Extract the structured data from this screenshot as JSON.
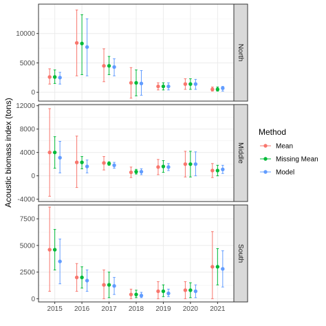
{
  "chart_data": {
    "type": "scatter",
    "ylabel": "Acoustic biomass index (tons)",
    "xlabel": "",
    "grid": true,
    "legend": {
      "title": "Method",
      "placement": "right",
      "entries": [
        {
          "name": "Mean",
          "color": "#F8766D"
        },
        {
          "name": "Missing Mean",
          "color": "#00BA38"
        },
        {
          "name": "Model",
          "color": "#619CFF"
        }
      ]
    },
    "x": [
      "2015",
      "2016",
      "2017",
      "2018",
      "2019",
      "2020",
      "2021"
    ],
    "panels": [
      {
        "strip_label": "North",
        "ylim": [
          -1500,
          15000
        ],
        "yticks": [
          0,
          5000,
          10000
        ],
        "ytick_labels": [
          "0",
          "5000",
          "10000"
        ],
        "series": [
          {
            "name": "Mean",
            "values": [
              2600,
              8400,
              4500,
              1600,
              1000,
              1400,
              500
            ],
            "lower": [
              1400,
              2800,
              1800,
              -1000,
              400,
              500,
              200
            ],
            "upper": [
              4000,
              14000,
              7400,
              4200,
              1600,
              2300,
              900
            ]
          },
          {
            "name": "Missing Mean",
            "values": [
              2600,
              8300,
              4500,
              1600,
              1000,
              1400,
              500
            ],
            "lower": [
              1500,
              3000,
              3000,
              -600,
              400,
              500,
              200
            ],
            "upper": [
              3800,
              13200,
              6100,
              3800,
              1600,
              2300,
              900
            ]
          },
          {
            "name": "Model",
            "values": [
              2500,
              7700,
              4300,
              1500,
              1000,
              1400,
              700
            ],
            "lower": [
              1400,
              2800,
              2800,
              -500,
              400,
              500,
              200
            ],
            "upper": [
              3400,
              12500,
              5700,
              3700,
              1600,
              2200,
              1000
            ]
          }
        ]
      },
      {
        "strip_label": "Middle",
        "ylim": [
          -4400,
          12200
        ],
        "yticks": [
          -4000,
          0,
          4000,
          8000,
          12000
        ],
        "ytick_labels": [
          "-4000",
          "0",
          "4000",
          "8000",
          "12000"
        ],
        "series": [
          {
            "name": "Mean",
            "values": [
              4000,
              2300,
              2200,
              600,
              1500,
              2000,
              900
            ],
            "lower": [
              -3500,
              -2000,
              1000,
              -300,
              200,
              -200,
              -300
            ],
            "upper": [
              11500,
              6800,
              3300,
              1500,
              2800,
              4200,
              2100
            ]
          },
          {
            "name": "Missing Mean",
            "values": [
              4000,
              2300,
              2100,
              700,
              1600,
              2000,
              900
            ],
            "lower": [
              1300,
              1200,
              1800,
              300,
              600,
              -200,
              0
            ],
            "upper": [
              6700,
              3300,
              2400,
              1100,
              2600,
              4200,
              1800
            ]
          },
          {
            "name": "Model",
            "values": [
              3100,
              1600,
              1800,
              700,
              1500,
              2000,
              1100
            ],
            "lower": [
              500,
              500,
              1300,
              200,
              900,
              0,
              400
            ],
            "upper": [
              5900,
              2700,
              2300,
              1200,
              2100,
              4100,
              1800
            ]
          }
        ]
      },
      {
        "strip_label": "South",
        "ylim": [
          -300,
          8800
        ],
        "yticks": [
          0,
          2500,
          5000,
          7500
        ],
        "ytick_labels": [
          "0",
          "2500",
          "5000",
          "7500"
        ],
        "series": [
          {
            "name": "Mean",
            "values": [
              4600,
              2000,
              1300,
              400,
              700,
              800,
              3000
            ],
            "lower": [
              700,
              700,
              0,
              0,
              0,
              0,
              0
            ],
            "upper": [
              8600,
              3300,
              2700,
              900,
              1600,
              1600,
              6300
            ]
          },
          {
            "name": "Missing Mean",
            "values": [
              4600,
              2000,
              1300,
              400,
              700,
              800,
              3000
            ],
            "lower": [
              2700,
              1000,
              100,
              100,
              200,
              100,
              1300
            ],
            "upper": [
              6500,
              3000,
              2500,
              800,
              1300,
              1500,
              4700
            ]
          },
          {
            "name": "Model",
            "values": [
              3500,
              1700,
              1200,
              300,
              500,
              700,
              2800
            ],
            "lower": [
              1400,
              700,
              400,
              100,
              200,
              100,
              1100
            ],
            "upper": [
              5600,
              2700,
              2000,
              600,
              900,
              1300,
              4500
            ]
          }
        ]
      }
    ]
  }
}
